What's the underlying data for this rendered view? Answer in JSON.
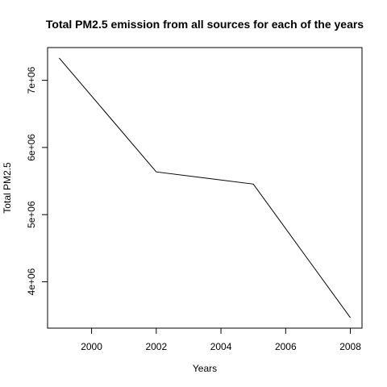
{
  "chart_data": {
    "type": "line",
    "title": "Total PM2.5 emission from all sources for each of the years",
    "xlabel": "Years",
    "ylabel": "Total PM2.5",
    "x": [
      1999,
      2002,
      2005,
      2008
    ],
    "series": [
      {
        "values": [
          7332967,
          5635780,
          5454703,
          3464206
        ]
      }
    ],
    "xticks": [
      2000,
      2002,
      2004,
      2006,
      2008
    ],
    "xtick_labels": [
      "2000",
      "2002",
      "2004",
      "2006",
      "2008"
    ],
    "yticks": [
      4000000,
      5000000,
      6000000,
      7000000
    ],
    "ytick_labels": [
      "4e+06",
      "5e+06",
      "6e+06",
      "7e+06"
    ],
    "xlim": [
      1998.64,
      2008.36
    ],
    "ylim": [
      3309455,
      7487718
    ],
    "grid": false,
    "line_color": "#000000"
  }
}
